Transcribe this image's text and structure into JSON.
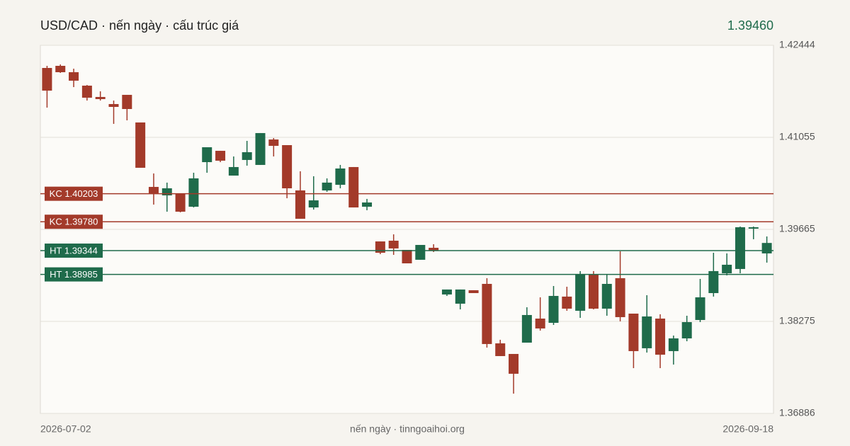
{
  "chart_data": {
    "type": "candlestick",
    "title": "USD/CAD · nến ngày · cấu trúc giá",
    "last_price": {
      "value": 1.3946,
      "label": "1.39460"
    },
    "caption": "nến ngày · tinngoaihoi.org",
    "up_color": "#1f6b4b",
    "down_color": "#a33a2a",
    "grid": true,
    "ylim": [
      1.36886,
      1.42444
    ],
    "yticks": [
      1.36886,
      1.38275,
      1.39665,
      1.41055,
      1.42444
    ],
    "categories": [
      "2026-07-02",
      null,
      null,
      null,
      null,
      null,
      null,
      null,
      null,
      null,
      null,
      null,
      null,
      null,
      null,
      null,
      null,
      null,
      null,
      null,
      null,
      null,
      null,
      null,
      null,
      null,
      null,
      null,
      null,
      null,
      null,
      null,
      null,
      null,
      null,
      null,
      null,
      null,
      null,
      null,
      null,
      null,
      null,
      null,
      null,
      null,
      null,
      null,
      null,
      null,
      null,
      null,
      null,
      null,
      "2026-09-18"
    ],
    "open": [
      1.42102,
      1.42134,
      1.42038,
      1.41835,
      1.41664,
      1.41557,
      1.41696,
      1.41279,
      1.40306,
      1.40178,
      1.4021,
      1.40007,
      1.4068,
      1.40851,
      1.40477,
      1.40713,
      1.40638,
      1.41022,
      1.40937,
      1.40253,
      1.39996,
      1.40253,
      1.40338,
      1.40606,
      1.40007,
      1.39483,
      1.39494,
      1.39355,
      1.39206,
      1.39387,
      1.38682,
      1.38543,
      1.38746,
      1.38842,
      1.37944,
      1.37784,
      1.37955,
      1.38318,
      1.38254,
      1.3865,
      1.38436,
      1.38981,
      1.38468,
      1.38928,
      1.38393,
      1.3787,
      1.38318,
      1.37827,
      1.38019,
      1.38297,
      1.38703,
      1.39002,
      1.39067,
      1.39676,
      1.39302
    ],
    "high": [
      1.42134,
      1.42155,
      1.42091,
      1.41845,
      1.41749,
      1.4161,
      1.41696,
      1.41279,
      1.40509,
      1.40371,
      1.4021,
      1.4052,
      1.40905,
      1.40851,
      1.40766,
      1.41001,
      1.41119,
      1.41044,
      1.40937,
      1.40542,
      1.40467,
      1.40435,
      1.40638,
      1.40606,
      1.40125,
      1.39483,
      1.3959,
      1.39355,
      1.3943,
      1.39441,
      1.38757,
      1.38757,
      1.38746,
      1.38928,
      1.37998,
      1.37784,
      1.38489,
      1.38639,
      1.3881,
      1.38799,
      1.39035,
      1.39035,
      1.38992,
      1.39334,
      1.38393,
      1.38671,
      1.38383,
      1.38062,
      1.38361,
      1.38917,
      1.39312,
      1.39302,
      1.39708,
      1.39708,
      1.39558
    ],
    "low": [
      1.41503,
      1.42027,
      1.41813,
      1.4161,
      1.4161,
      1.41258,
      1.41311,
      1.40595,
      1.40039,
      1.39932,
      1.39922,
      1.39996,
      1.4052,
      1.4068,
      1.40477,
      1.40627,
      1.40638,
      1.40766,
      1.40135,
      1.39825,
      1.39964,
      1.40232,
      1.40285,
      1.39996,
      1.39954,
      1.39291,
      1.3928,
      1.39152,
      1.39206,
      1.39323,
      1.3866,
      1.38457,
      1.38703,
      1.3788,
      1.37752,
      1.37185,
      1.37955,
      1.38137,
      1.38222,
      1.38436,
      1.38329,
      1.38457,
      1.38361,
      1.38276,
      1.3757,
      1.37805,
      1.3757,
      1.37624,
      1.37976,
      1.38265,
      1.3865,
      1.3897,
      1.39002,
      1.39516,
      1.39163
    ],
    "close": [
      1.4176,
      1.42038,
      1.4191,
      1.41653,
      1.41632,
      1.41514,
      1.41482,
      1.40595,
      1.4021,
      1.40285,
      1.39932,
      1.40435,
      1.40905,
      1.40702,
      1.40606,
      1.4083,
      1.41119,
      1.40926,
      1.40285,
      1.39825,
      1.40103,
      1.40371,
      1.40584,
      1.39996,
      1.40071,
      1.39312,
      1.39377,
      1.39152,
      1.3943,
      1.39344,
      1.38757,
      1.38757,
      1.38703,
      1.37934,
      1.37752,
      1.37485,
      1.38372,
      1.38169,
      1.3866,
      1.38468,
      1.38992,
      1.38468,
      1.38842,
      1.3834,
      1.37827,
      1.3835,
      1.37773,
      1.38019,
      1.38265,
      1.38639,
      1.39035,
      1.39131,
      1.39697,
      1.39697,
      1.3946
    ],
    "levels": [
      {
        "label": "KC 1.40203",
        "value": 1.40203,
        "color": "#a33a2a"
      },
      {
        "label": "KC 1.39780",
        "value": 1.3978,
        "color": "#a33a2a"
      },
      {
        "label": "HT 1.39344",
        "value": 1.39344,
        "color": "#1f6b4b"
      },
      {
        "label": "HT 1.38985",
        "value": 1.38985,
        "color": "#1f6b4b"
      }
    ]
  }
}
